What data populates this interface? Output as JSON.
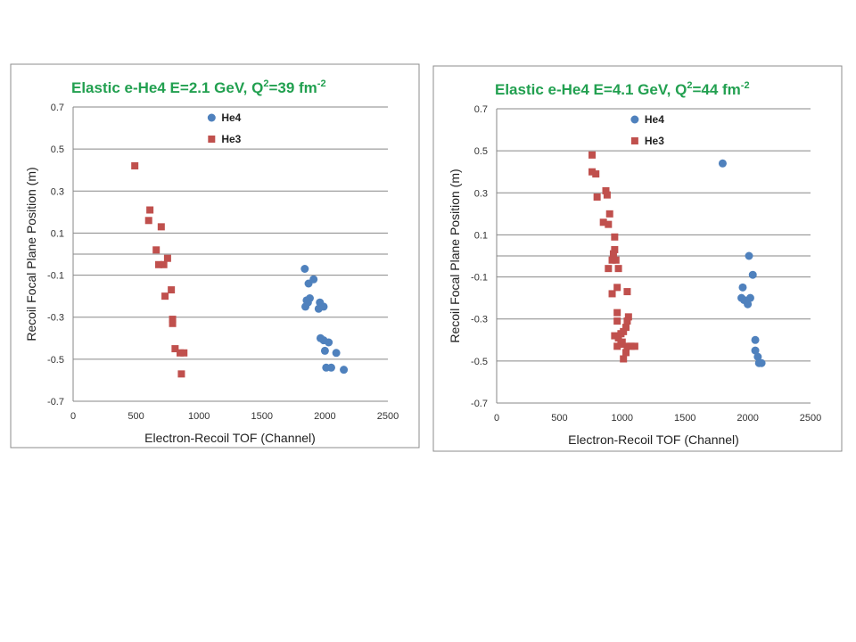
{
  "chart_data": [
    {
      "type": "scatter",
      "title": "Elastic e-He4  E=2.1 GeV, Q",
      "title_sup1": "2",
      "title_mid": "=39 fm",
      "title_sup2": "-2",
      "xlabel": "Electron-Recoil TOF (Channel)",
      "ylabel": "Recoil Focal Plane Position (m)",
      "xlim": [
        0,
        2500
      ],
      "ylim": [
        -0.7,
        0.7
      ],
      "x_ticks": [
        0,
        500,
        1000,
        1500,
        2000,
        2500
      ],
      "y_ticks": [
        0.7,
        0.5,
        0.3,
        0.1,
        -0.1,
        -0.3,
        -0.5,
        -0.7
      ],
      "y_tick_labels": [
        "0.7",
        "0.5",
        "0.3",
        "0.1",
        "-0.1",
        "-0.3",
        "-0.5",
        "-0.7"
      ],
      "grid": "horizontal",
      "legend_position": "top-center",
      "series": [
        {
          "name": "He4",
          "color": "#4f81bd",
          "marker": "circle",
          "points": [
            [
              1840,
              -0.07
            ],
            [
              1870,
              -0.14
            ],
            [
              1910,
              -0.12
            ],
            [
              1855,
              -0.22
            ],
            [
              1880,
              -0.21
            ],
            [
              1845,
              -0.25
            ],
            [
              1865,
              -0.23
            ],
            [
              1950,
              -0.26
            ],
            [
              1960,
              -0.23
            ],
            [
              1990,
              -0.25
            ],
            [
              1965,
              -0.4
            ],
            [
              1990,
              -0.41
            ],
            [
              2030,
              -0.42
            ],
            [
              2000,
              -0.46
            ],
            [
              2090,
              -0.47
            ],
            [
              2010,
              -0.54
            ],
            [
              2050,
              -0.54
            ],
            [
              2150,
              -0.55
            ]
          ]
        },
        {
          "name": "He3",
          "color": "#c0504d",
          "marker": "square",
          "points": [
            [
              490,
              0.42
            ],
            [
              610,
              0.21
            ],
            [
              600,
              0.16
            ],
            [
              700,
              0.13
            ],
            [
              660,
              0.02
            ],
            [
              750,
              -0.02
            ],
            [
              680,
              -0.05
            ],
            [
              720,
              -0.05
            ],
            [
              780,
              -0.17
            ],
            [
              730,
              -0.2
            ],
            [
              790,
              -0.31
            ],
            [
              790,
              -0.33
            ],
            [
              810,
              -0.45
            ],
            [
              880,
              -0.47
            ],
            [
              850,
              -0.47
            ],
            [
              860,
              -0.57
            ]
          ]
        }
      ]
    },
    {
      "type": "scatter",
      "title": "Elastic e-He4  E=4.1 GeV, Q",
      "title_sup1": "2",
      "title_mid": "=44 fm",
      "title_sup2": "-2",
      "xlabel": "Electron-Recoil TOF (Channel)",
      "ylabel": "Recoil Focal Plane Position (m)",
      "xlim": [
        0,
        2500
      ],
      "ylim": [
        -0.7,
        0.7
      ],
      "x_ticks": [
        0,
        500,
        1000,
        1500,
        2000,
        2500
      ],
      "y_ticks": [
        0.7,
        0.5,
        0.3,
        0.1,
        -0.1,
        -0.3,
        -0.5,
        -0.7
      ],
      "y_tick_labels": [
        "0.7",
        "0.5",
        "0.3",
        "0.1",
        "-0.1",
        "-0.3",
        "-0.5",
        "-0.7"
      ],
      "grid": "horizontal",
      "legend_position": "top-center",
      "series": [
        {
          "name": "He4",
          "color": "#4f81bd",
          "marker": "circle",
          "points": [
            [
              1800,
              0.44
            ],
            [
              2010,
              0.0
            ],
            [
              2040,
              -0.09
            ],
            [
              1960,
              -0.15
            ],
            [
              1950,
              -0.2
            ],
            [
              1970,
              -0.21
            ],
            [
              2000,
              -0.23
            ],
            [
              2020,
              -0.2
            ],
            [
              2060,
              -0.4
            ],
            [
              2060,
              -0.45
            ],
            [
              2080,
              -0.48
            ],
            [
              2090,
              -0.51
            ],
            [
              2110,
              -0.51
            ]
          ]
        },
        {
          "name": "He3",
          "color": "#c0504d",
          "marker": "square",
          "points": [
            [
              760,
              0.48
            ],
            [
              760,
              0.4
            ],
            [
              790,
              0.39
            ],
            [
              800,
              0.28
            ],
            [
              870,
              0.31
            ],
            [
              880,
              0.29
            ],
            [
              900,
              0.2
            ],
            [
              850,
              0.16
            ],
            [
              890,
              0.15
            ],
            [
              940,
              0.09
            ],
            [
              940,
              0.03
            ],
            [
              930,
              0.01
            ],
            [
              920,
              -0.02
            ],
            [
              950,
              -0.02
            ],
            [
              890,
              -0.06
            ],
            [
              970,
              -0.06
            ],
            [
              960,
              -0.15
            ],
            [
              920,
              -0.18
            ],
            [
              1040,
              -0.17
            ],
            [
              960,
              -0.27
            ],
            [
              960,
              -0.31
            ],
            [
              1050,
              -0.29
            ],
            [
              1040,
              -0.31
            ],
            [
              1030,
              -0.34
            ],
            [
              940,
              -0.38
            ],
            [
              990,
              -0.37
            ],
            [
              1010,
              -0.36
            ],
            [
              970,
              -0.39
            ],
            [
              990,
              -0.42
            ],
            [
              960,
              -0.43
            ],
            [
              1000,
              -0.41
            ],
            [
              1040,
              -0.43
            ],
            [
              1070,
              -0.43
            ],
            [
              1100,
              -0.43
            ],
            [
              1030,
              -0.46
            ],
            [
              1010,
              -0.49
            ]
          ]
        }
      ]
    }
  ]
}
